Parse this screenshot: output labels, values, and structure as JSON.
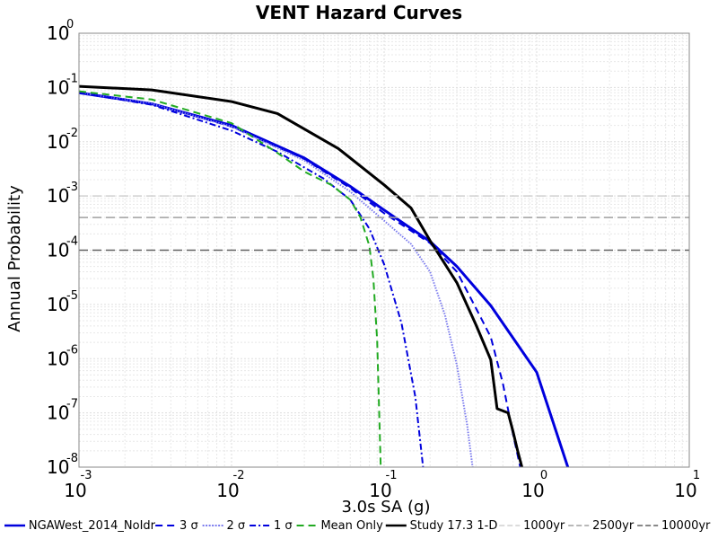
{
  "chart_data": {
    "type": "line",
    "title": "VENT Hazard Curves",
    "xlabel": "3.0s SA (g)",
    "ylabel": "Annual Probability",
    "xscale": "log",
    "yscale": "log",
    "xlim": [
      0.001,
      10
    ],
    "ylim": [
      1e-08,
      1
    ],
    "grid": true,
    "legend_placement": "bottom",
    "x_ticks": [
      {
        "value": 0.001,
        "base": "10",
        "exp": "-3"
      },
      {
        "value": 0.01,
        "base": "10",
        "exp": "-2"
      },
      {
        "value": 0.1,
        "base": "10",
        "exp": "-1"
      },
      {
        "value": 1,
        "base": "10",
        "exp": "0"
      },
      {
        "value": 10,
        "base": "10",
        "exp": "1"
      }
    ],
    "y_ticks": [
      {
        "value": 1,
        "base": "10",
        "exp": "0"
      },
      {
        "value": 0.1,
        "base": "10",
        "exp": "-1"
      },
      {
        "value": 0.01,
        "base": "10",
        "exp": "-2"
      },
      {
        "value": 0.001,
        "base": "10",
        "exp": "-3"
      },
      {
        "value": 0.0001,
        "base": "10",
        "exp": "-4"
      },
      {
        "value": 1e-05,
        "base": "10",
        "exp": "-5"
      },
      {
        "value": 1e-06,
        "base": "10",
        "exp": "-6"
      },
      {
        "value": 1e-07,
        "base": "10",
        "exp": "-7"
      },
      {
        "value": 1e-08,
        "base": "10",
        "exp": "-8"
      }
    ],
    "series": [
      {
        "name": "NGAWest_2014_NoIdr",
        "color": "#0000dd",
        "dash": "solid",
        "width": 3,
        "points": [
          [
            0.001,
            0.08
          ],
          [
            0.003,
            0.05
          ],
          [
            0.01,
            0.02
          ],
          [
            0.03,
            0.005
          ],
          [
            0.06,
            0.0015
          ],
          [
            0.1,
            0.00055
          ],
          [
            0.2,
            0.000145
          ],
          [
            0.3,
            5e-05
          ],
          [
            0.5,
            9.5e-06
          ],
          [
            1,
            5.6e-07
          ],
          [
            1.6,
            1e-08
          ]
        ]
      },
      {
        "name": "3 σ",
        "color": "#0000dd",
        "dash": "dashed",
        "width": 2,
        "points": [
          [
            0.001,
            0.08
          ],
          [
            0.003,
            0.05
          ],
          [
            0.01,
            0.019
          ],
          [
            0.03,
            0.0048
          ],
          [
            0.06,
            0.0014
          ],
          [
            0.1,
            0.00048
          ],
          [
            0.2,
            0.000135
          ],
          [
            0.3,
            4e-05
          ],
          [
            0.4,
            8.5e-06
          ],
          [
            0.5,
            2.5e-06
          ],
          [
            0.6,
            3.5e-07
          ],
          [
            0.7,
            4e-08
          ],
          [
            0.78,
            1e-08
          ]
        ]
      },
      {
        "name": "2 σ",
        "color": "#7a7aee",
        "dash": "dotted",
        "width": 2,
        "points": [
          [
            0.001,
            0.08
          ],
          [
            0.003,
            0.05
          ],
          [
            0.01,
            0.019
          ],
          [
            0.03,
            0.0045
          ],
          [
            0.06,
            0.0012
          ],
          [
            0.1,
            0.00035
          ],
          [
            0.15,
            0.00013
          ],
          [
            0.2,
            4e-05
          ],
          [
            0.25,
            6.5e-06
          ],
          [
            0.3,
            7.5e-07
          ],
          [
            0.35,
            6e-08
          ],
          [
            0.38,
            1e-08
          ]
        ]
      },
      {
        "name": "1 σ",
        "color": "#0000dd",
        "dash": "dashdot",
        "width": 2,
        "points": [
          [
            0.001,
            0.08
          ],
          [
            0.003,
            0.048
          ],
          [
            0.01,
            0.016
          ],
          [
            0.02,
            0.0065
          ],
          [
            0.04,
            0.0021
          ],
          [
            0.06,
            0.00085
          ],
          [
            0.08,
            0.00025
          ],
          [
            0.1,
            5.5e-05
          ],
          [
            0.13,
            4.5e-06
          ],
          [
            0.16,
            2e-07
          ],
          [
            0.18,
            1e-08
          ]
        ]
      },
      {
        "name": "Mean Only",
        "color": "#22aa22",
        "dash": "dashed",
        "width": 2,
        "points": [
          [
            0.001,
            0.085
          ],
          [
            0.003,
            0.06
          ],
          [
            0.01,
            0.022
          ],
          [
            0.02,
            0.0062
          ],
          [
            0.03,
            0.0028
          ],
          [
            0.045,
            0.0016
          ],
          [
            0.06,
            0.00085
          ],
          [
            0.07,
            0.0004
          ],
          [
            0.08,
            0.00012
          ],
          [
            0.085,
            3e-05
          ],
          [
            0.09,
            2.2e-06
          ],
          [
            0.095,
            1e-08
          ]
        ]
      },
      {
        "name": "Study 17.3 1-D",
        "color": "#000000",
        "dash": "solid",
        "width": 3,
        "points": [
          [
            0.001,
            0.105
          ],
          [
            0.003,
            0.09
          ],
          [
            0.01,
            0.055
          ],
          [
            0.02,
            0.033
          ],
          [
            0.05,
            0.0075
          ],
          [
            0.1,
            0.0016
          ],
          [
            0.15,
            0.0006
          ],
          [
            0.2,
            0.00015
          ],
          [
            0.3,
            2.5e-05
          ],
          [
            0.4,
            4.2e-06
          ],
          [
            0.5,
            9.5e-07
          ],
          [
            0.55,
            1.2e-07
          ],
          [
            0.65,
            1e-07
          ],
          [
            0.7,
            4.5e-08
          ],
          [
            0.75,
            2e-08
          ],
          [
            0.8,
            1e-08
          ]
        ]
      },
      {
        "name": "1000yr",
        "color": "#d0d0d0",
        "dash": "longdash",
        "width": 1.5,
        "hline": 0.001
      },
      {
        "name": "2500yr",
        "color": "#a0a0a0",
        "dash": "longdash",
        "width": 1.5,
        "hline": 0.0004
      },
      {
        "name": "10000yr",
        "color": "#606060",
        "dash": "longdash",
        "width": 1.5,
        "hline": 0.0001
      }
    ]
  }
}
